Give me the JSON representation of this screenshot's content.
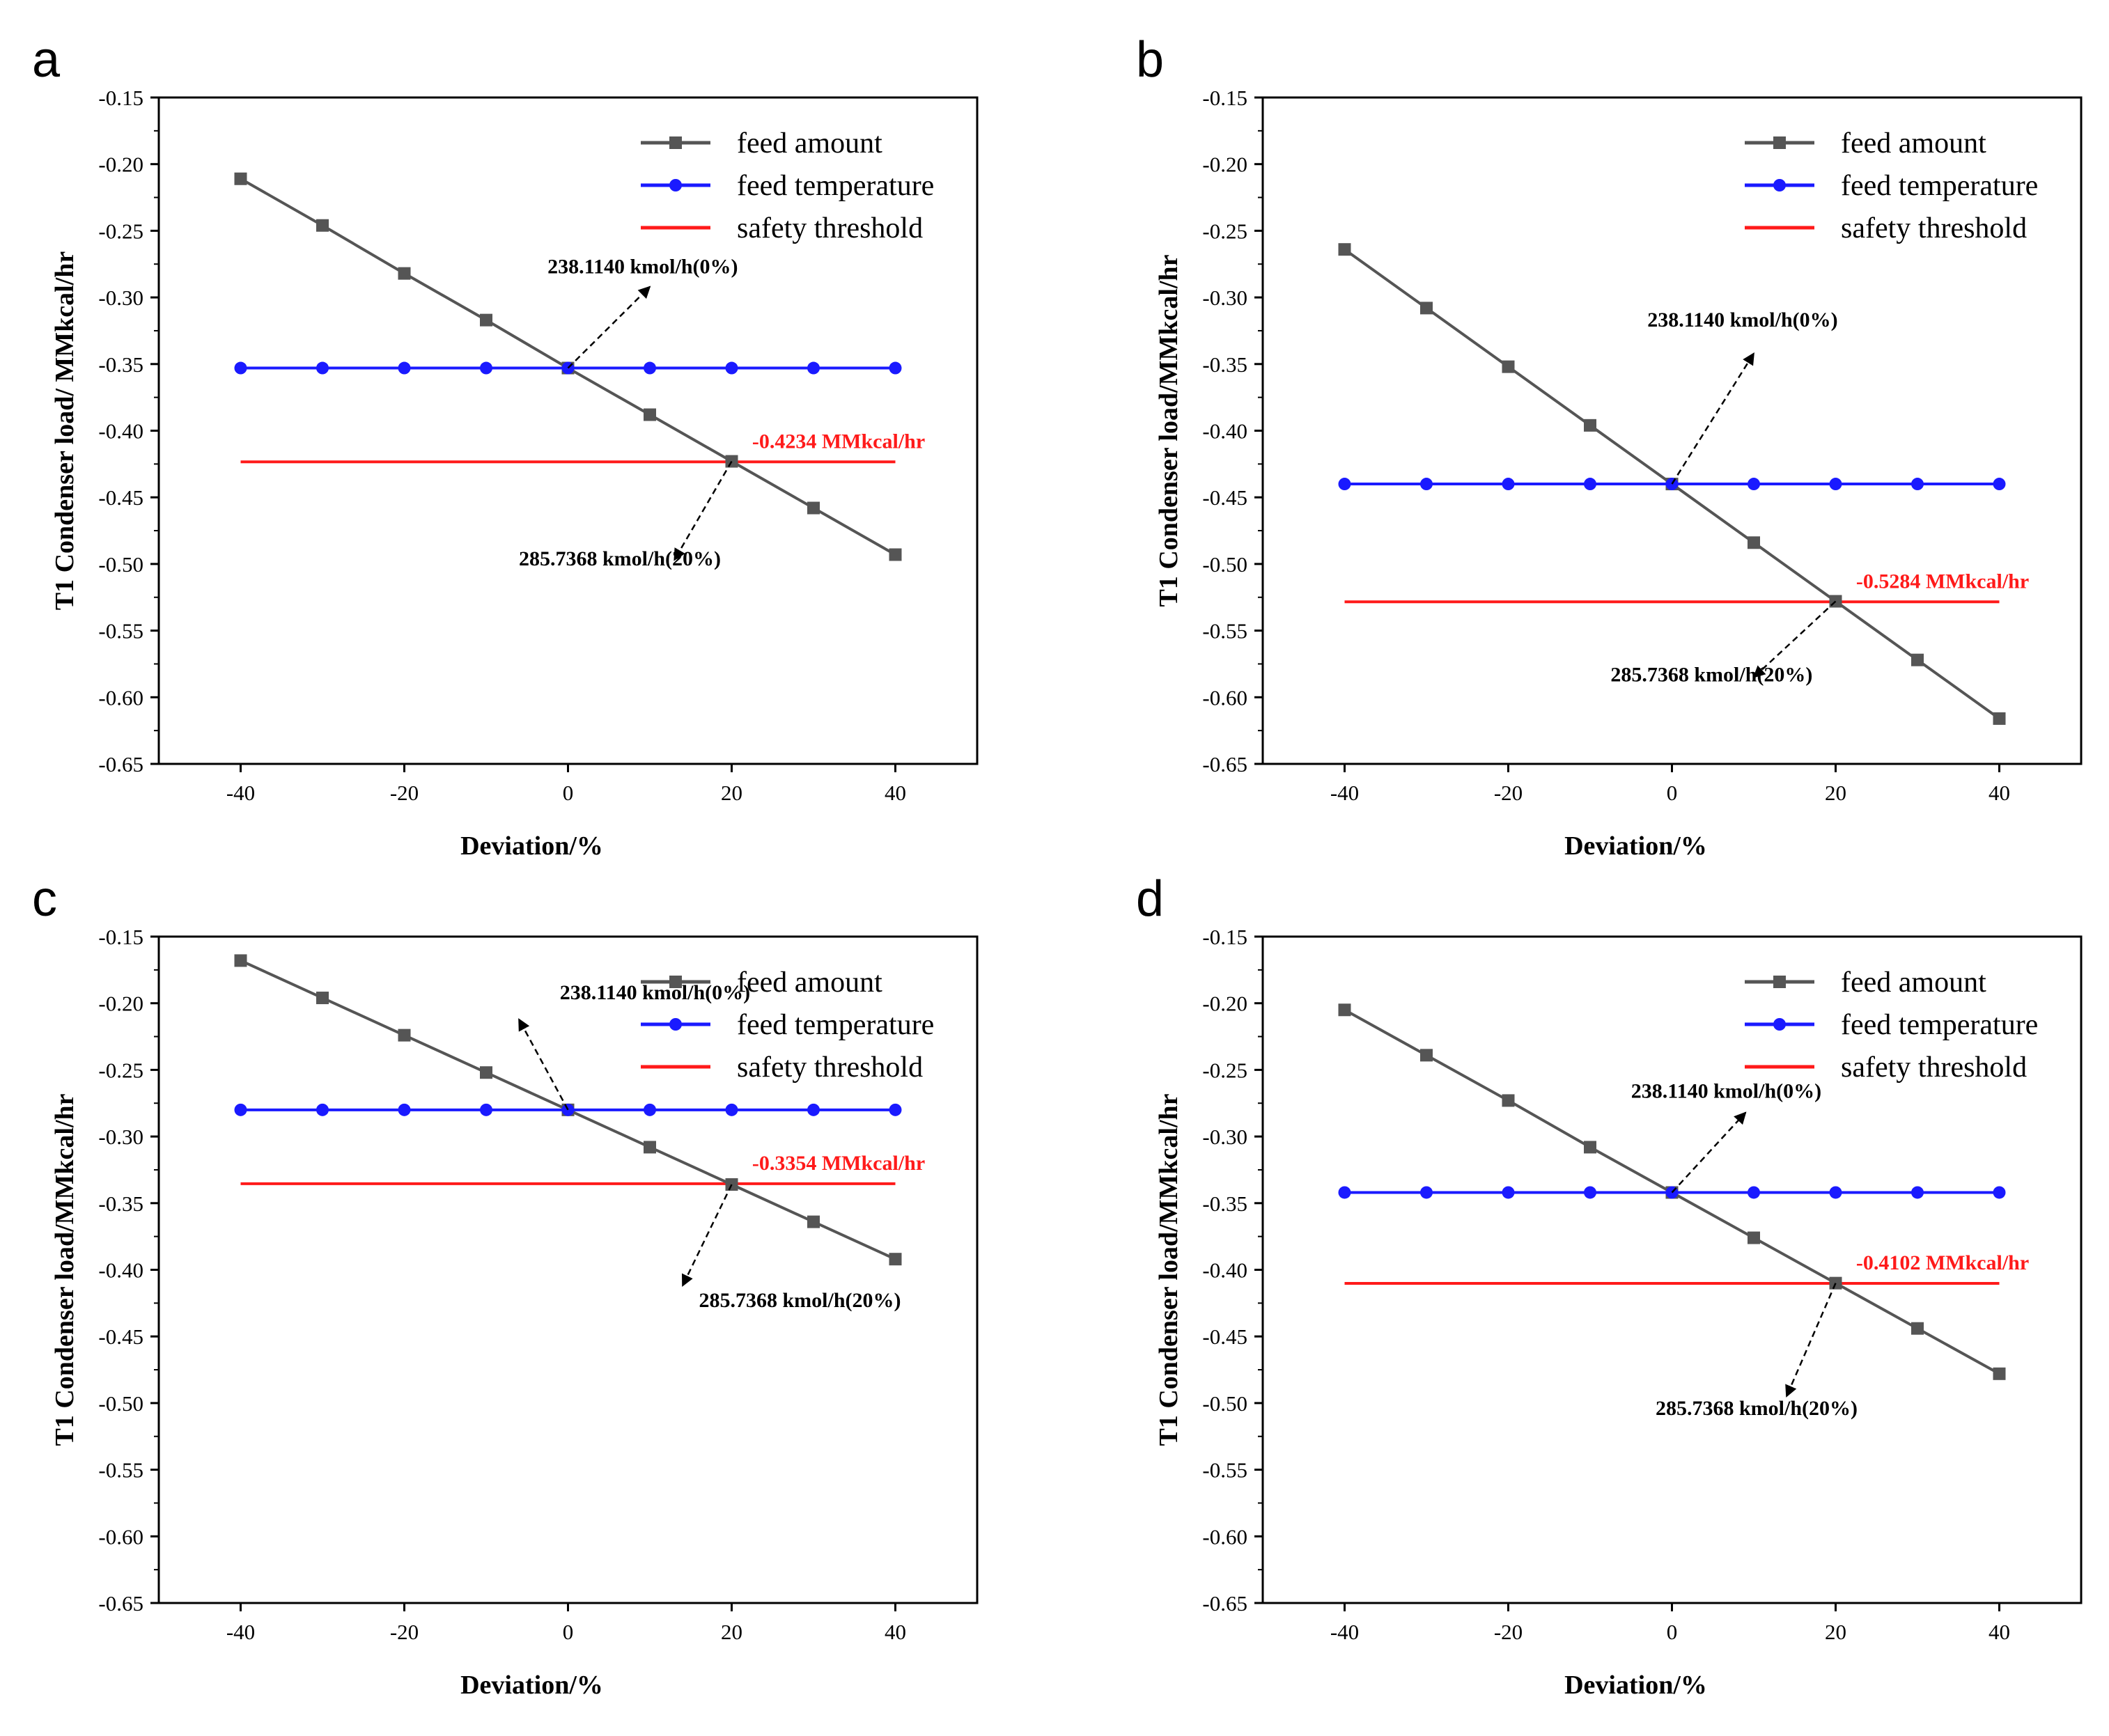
{
  "figure": {
    "panels": [
      "a",
      "b",
      "c",
      "d"
    ]
  },
  "chart_data": [
    {
      "panel": "a",
      "type": "line",
      "xlabel": "Deviation/%",
      "ylabel": "T1 Condenser load/ MMkcal/hr",
      "xlim": [
        -50,
        50
      ],
      "ylim": [
        -0.65,
        -0.15
      ],
      "xticks": [
        -40,
        -20,
        0,
        20,
        40
      ],
      "xtick_labels": [
        "-40",
        "-20",
        "0",
        "20",
        "40"
      ],
      "yticks": [
        -0.15,
        -0.2,
        -0.25,
        -0.3,
        -0.35,
        -0.4,
        -0.45,
        -0.5,
        -0.55,
        -0.6,
        -0.65
      ],
      "ytick_labels": [
        "-0.15",
        "-0.20",
        "-0.25",
        "-0.30",
        "-0.35",
        "-0.40",
        "-0.45",
        "-0.50",
        "-0.55",
        "-0.60",
        "-0.65"
      ],
      "x": [
        -40,
        -30,
        -20,
        -10,
        0,
        10,
        20,
        30,
        40
      ],
      "series": [
        {
          "name": "feed amount",
          "color": "#555555",
          "marker": "square",
          "values": [
            -0.211,
            -0.246,
            -0.282,
            -0.317,
            -0.353,
            -0.388,
            -0.423,
            -0.458,
            -0.493
          ]
        },
        {
          "name": "feed temperature",
          "color": "#1a1aff",
          "marker": "circle",
          "values": [
            -0.353,
            -0.353,
            -0.353,
            -0.353,
            -0.353,
            -0.353,
            -0.353,
            -0.353,
            -0.353
          ]
        }
      ],
      "threshold": {
        "name": "safety threshold",
        "color": "#ff1a1a",
        "value": -0.4234,
        "x_range": [
          -40,
          40
        ],
        "label": "-0.4234 MMkcal/hr"
      },
      "annotations": [
        {
          "text": "238.1140 kmol/h(0%)",
          "point": [
            0,
            -0.353
          ],
          "arrow_end": [
            10,
            -0.292
          ],
          "text_pos": [
            -2.5,
            -0.282
          ]
        },
        {
          "text": "285.7368 kmol/h(20%)",
          "point": [
            20,
            -0.423
          ],
          "arrow_end": [
            13,
            -0.497
          ],
          "text_pos": [
            -6,
            -0.501
          ]
        }
      ]
    },
    {
      "panel": "b",
      "type": "line",
      "xlabel": "Deviation/%",
      "ylabel": "T1 Condenser load/MMkcal/hr",
      "xlim": [
        -50,
        50
      ],
      "ylim": [
        -0.65,
        -0.15
      ],
      "xticks": [
        -40,
        -20,
        0,
        20,
        40
      ],
      "xtick_labels": [
        "-40",
        "-20",
        "0",
        "20",
        "40"
      ],
      "yticks": [
        -0.15,
        -0.2,
        -0.25,
        -0.3,
        -0.35,
        -0.4,
        -0.45,
        -0.5,
        -0.55,
        -0.6,
        -0.65
      ],
      "ytick_labels": [
        "-0.15",
        "-0.20",
        "-0.25",
        "-0.30",
        "-0.35",
        "-0.40",
        "-0.45",
        "-0.50",
        "-0.55",
        "-0.60",
        "-0.65"
      ],
      "x": [
        -40,
        -30,
        -20,
        -10,
        0,
        10,
        20,
        30,
        40
      ],
      "series": [
        {
          "name": "feed amount",
          "color": "#555555",
          "marker": "square",
          "values": [
            -0.264,
            -0.308,
            -0.352,
            -0.396,
            -0.44,
            -0.484,
            -0.528,
            -0.572,
            -0.616
          ]
        },
        {
          "name": "feed temperature",
          "color": "#1a1aff",
          "marker": "circle",
          "values": [
            -0.44,
            -0.44,
            -0.44,
            -0.44,
            -0.44,
            -0.44,
            -0.44,
            -0.44,
            -0.44
          ]
        }
      ],
      "threshold": {
        "name": "safety threshold",
        "color": "#ff1a1a",
        "value": -0.5284,
        "x_range": [
          -40,
          40
        ],
        "label": "-0.5284 MMkcal/hr"
      },
      "annotations": [
        {
          "text": "238.1140 kmol/h(0%)",
          "point": [
            0,
            -0.44
          ],
          "arrow_end": [
            10,
            -0.342
          ],
          "text_pos": [
            -3,
            -0.322
          ]
        },
        {
          "text": "285.7368 kmol/h(20%)",
          "point": [
            20,
            -0.528
          ],
          "arrow_end": [
            10,
            -0.585
          ],
          "text_pos": [
            -7.5,
            -0.588
          ]
        }
      ]
    },
    {
      "panel": "c",
      "type": "line",
      "xlabel": "Deviation/%",
      "ylabel": "T1 Condenser load/MMkcal/hr",
      "xlim": [
        -50,
        50
      ],
      "ylim": [
        -0.65,
        -0.15
      ],
      "xticks": [
        -40,
        -20,
        0,
        20,
        40
      ],
      "xtick_labels": [
        "-40",
        "-20",
        "0",
        "20",
        "40"
      ],
      "yticks": [
        -0.15,
        -0.2,
        -0.25,
        -0.3,
        -0.35,
        -0.4,
        -0.45,
        -0.5,
        -0.55,
        -0.6,
        -0.65
      ],
      "ytick_labels": [
        "-0.15",
        "-0.20",
        "-0.25",
        "-0.30",
        "-0.35",
        "-0.40",
        "-0.45",
        "-0.50",
        "-0.55",
        "-0.60",
        "-0.65"
      ],
      "x": [
        -40,
        -30,
        -20,
        -10,
        0,
        10,
        20,
        30,
        40
      ],
      "series": [
        {
          "name": "feed amount",
          "color": "#555555",
          "marker": "square",
          "values": [
            -0.168,
            -0.196,
            -0.224,
            -0.252,
            -0.28,
            -0.308,
            -0.336,
            -0.364,
            -0.392
          ]
        },
        {
          "name": "feed temperature",
          "color": "#1a1aff",
          "marker": "circle",
          "values": [
            -0.28,
            -0.28,
            -0.28,
            -0.28,
            -0.28,
            -0.28,
            -0.28,
            -0.28,
            -0.28
          ]
        }
      ],
      "threshold": {
        "name": "safety threshold",
        "color": "#ff1a1a",
        "value": -0.3354,
        "x_range": [
          -40,
          40
        ],
        "label": "-0.3354 MMkcal/hr"
      },
      "annotations": [
        {
          "text": "238.1140 kmol/h(0%)",
          "point": [
            0,
            -0.28
          ],
          "arrow_end": [
            -6,
            -0.212
          ],
          "text_pos": [
            -1,
            -0.197
          ]
        },
        {
          "text": "285.7368 kmol/h(20%)",
          "point": [
            20,
            -0.336
          ],
          "arrow_end": [
            14,
            -0.412
          ],
          "text_pos": [
            16,
            -0.428
          ]
        }
      ]
    },
    {
      "panel": "d",
      "type": "line",
      "xlabel": "Deviation/%",
      "ylabel": "T1 Condenser load/MMkcal/hr",
      "xlim": [
        -50,
        50
      ],
      "ylim": [
        -0.65,
        -0.15
      ],
      "xticks": [
        -40,
        -20,
        0,
        20,
        40
      ],
      "xtick_labels": [
        "-40",
        "-20",
        "0",
        "20",
        "40"
      ],
      "yticks": [
        -0.15,
        -0.2,
        -0.25,
        -0.3,
        -0.35,
        -0.4,
        -0.45,
        -0.5,
        -0.55,
        -0.6,
        -0.65
      ],
      "ytick_labels": [
        "-0.15",
        "-0.20",
        "-0.25",
        "-0.30",
        "-0.35",
        "-0.40",
        "-0.45",
        "-0.50",
        "-0.55",
        "-0.60",
        "-0.65"
      ],
      "x": [
        -40,
        -30,
        -20,
        -10,
        0,
        10,
        20,
        30,
        40
      ],
      "series": [
        {
          "name": "feed amount",
          "color": "#555555",
          "marker": "square",
          "values": [
            -0.205,
            -0.239,
            -0.273,
            -0.308,
            -0.342,
            -0.376,
            -0.41,
            -0.444,
            -0.478
          ]
        },
        {
          "name": "feed temperature",
          "color": "#1a1aff",
          "marker": "circle",
          "values": [
            -0.342,
            -0.342,
            -0.342,
            -0.342,
            -0.342,
            -0.342,
            -0.342,
            -0.342,
            -0.342
          ]
        }
      ],
      "threshold": {
        "name": "safety threshold",
        "color": "#ff1a1a",
        "value": -0.4102,
        "x_range": [
          -40,
          40
        ],
        "label": "-0.4102 MMkcal/hr"
      },
      "annotations": [
        {
          "text": "238.1140 kmol/h(0%)",
          "point": [
            0,
            -0.342
          ],
          "arrow_end": [
            9,
            -0.282
          ],
          "text_pos": [
            -5,
            -0.271
          ]
        },
        {
          "text": "285.7368 kmol/h(20%)",
          "point": [
            20,
            -0.41
          ],
          "arrow_end": [
            14,
            -0.495
          ],
          "text_pos": [
            -2,
            -0.509
          ]
        }
      ]
    }
  ]
}
